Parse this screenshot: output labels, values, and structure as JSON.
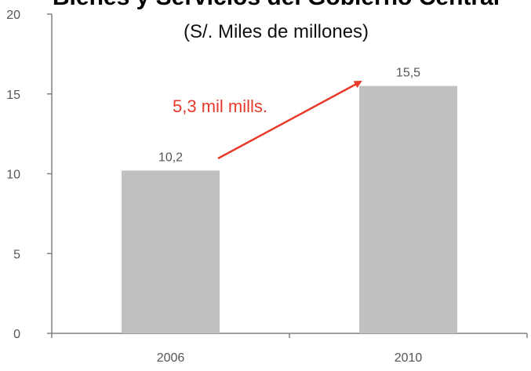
{
  "chart_data": {
    "type": "bar",
    "title": "Bienes y Servicios del Gobierno Central",
    "subtitle": "(S/. Miles de millones)",
    "categories": [
      "2006",
      "2010"
    ],
    "values": [
      10.2,
      15.5
    ],
    "data_labels": [
      "10,2",
      "15,5"
    ],
    "ylim": [
      0,
      20
    ],
    "yticks": [
      0,
      5,
      10,
      15,
      20
    ],
    "xlabel": "",
    "ylabel": "",
    "grid": false,
    "legend": "none",
    "bar_color": "#c0c0c0",
    "axis_color": "#808080",
    "annotation": {
      "text": "5,3 mil mills.",
      "color": "#e8392a"
    }
  }
}
